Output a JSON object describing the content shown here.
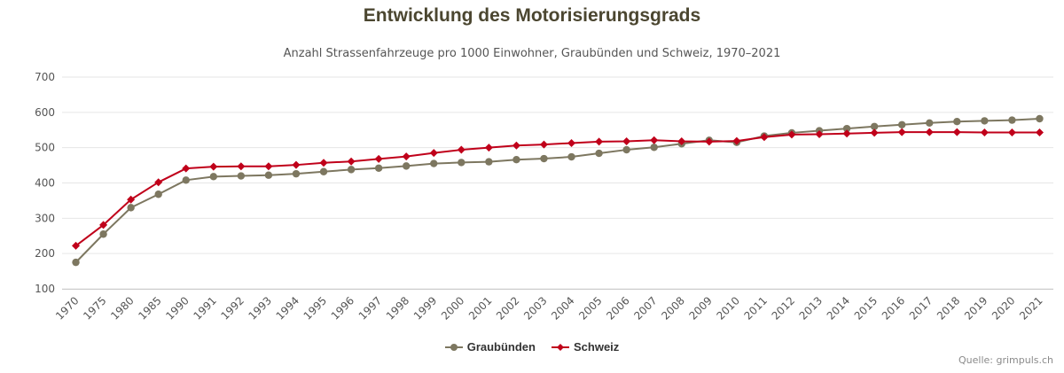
{
  "chart_data": {
    "type": "line",
    "title": "Entwicklung des Motorisierungsgrads",
    "subtitle": "Anzahl Strassenfahrzeuge pro 1000 Einwohner, Graubünden und Schweiz, 1970–2021",
    "categories": [
      "1970",
      "1975",
      "1980",
      "1985",
      "1990",
      "1991",
      "1992",
      "1993",
      "1994",
      "1995",
      "1996",
      "1997",
      "1998",
      "1999",
      "2000",
      "2001",
      "2002",
      "2003",
      "2004",
      "2005",
      "2006",
      "2007",
      "2008",
      "2009",
      "2010",
      "2011",
      "2012",
      "2013",
      "2014",
      "2015",
      "2016",
      "2017",
      "2018",
      "2019",
      "2020",
      "2021"
    ],
    "ylim": [
      100,
      700
    ],
    "yticks": [
      100,
      200,
      300,
      400,
      500,
      600,
      700
    ],
    "grid": true,
    "legend_position": "bottom-center",
    "series": [
      {
        "name": "Graubünden",
        "color": "#7d7760",
        "marker": "circle",
        "values": [
          175,
          255,
          330,
          368,
          408,
          418,
          420,
          422,
          426,
          432,
          438,
          442,
          448,
          455,
          458,
          460,
          466,
          469,
          474,
          484,
          494,
          501,
          511,
          521,
          515,
          533,
          542,
          548,
          554,
          560,
          565,
          570,
          574,
          576,
          578,
          582
        ]
      },
      {
        "name": "Schweiz",
        "color": "#c0001a",
        "marker": "diamond",
        "values": [
          222,
          281,
          353,
          402,
          441,
          446,
          447,
          447,
          451,
          457,
          461,
          468,
          475,
          485,
          494,
          500,
          506,
          509,
          513,
          517,
          518,
          521,
          518,
          517,
          519,
          530,
          537,
          538,
          540,
          542,
          544,
          544,
          544,
          543,
          543,
          543
        ]
      }
    ]
  },
  "source": "Quelle: grimpuls.ch"
}
